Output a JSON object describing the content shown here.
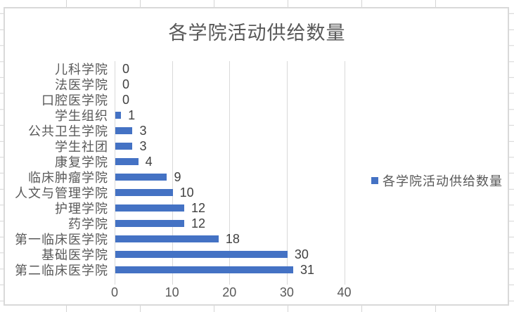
{
  "chart_data": {
    "type": "bar",
    "orientation": "horizontal",
    "title": "各学院活动供给数量",
    "legend": [
      "各学院活动供给数量"
    ],
    "legend_position": "right",
    "categories": [
      "儿科学院",
      "法医学院",
      "口腔医学院",
      "学生组织",
      "公共卫生学院",
      "学生社团",
      "康复学院",
      "临床肿瘤学院",
      "人文与管理学院",
      "护理学院",
      "药学院",
      "第一临床医学院",
      "基础医学院",
      "第二临床医学院"
    ],
    "values": [
      0,
      0,
      0,
      1,
      3,
      3,
      4,
      9,
      10,
      12,
      12,
      18,
      30,
      31
    ],
    "x_ticks": [
      "0",
      "10",
      "20",
      "30",
      "40"
    ],
    "xlim": [
      0,
      40
    ],
    "grid": "vertical-gridlines-on",
    "data_labels": "shown-outside-end"
  },
  "colors": {
    "bar": "#4472c4",
    "chart_gridline": "#d9d9d9",
    "axis_text": "#595959",
    "title_text": "#595959",
    "data_label_text": "#404040",
    "sheet_gridline": "#d4d4d4",
    "chart_border": "#d9d9d9"
  }
}
